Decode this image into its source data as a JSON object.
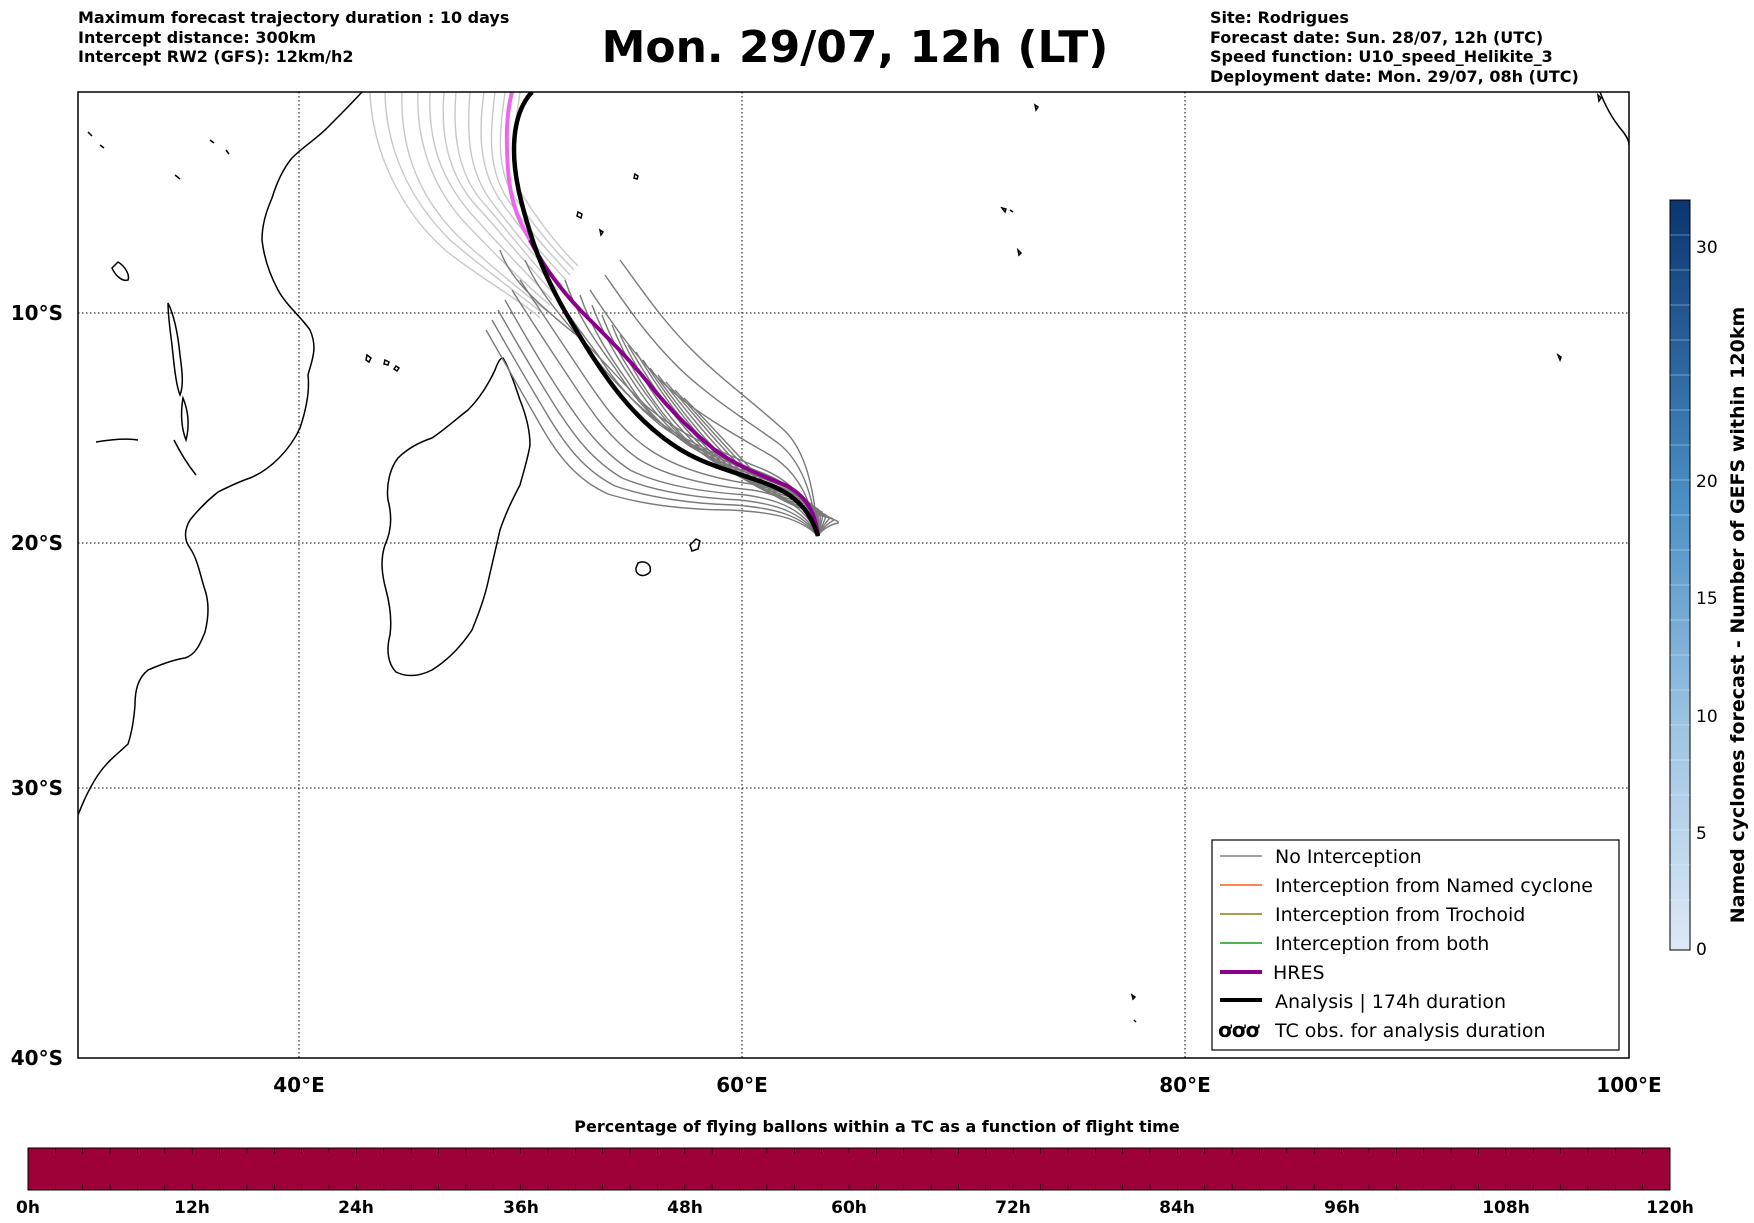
{
  "header": {
    "left": [
      "Maximum forecast trajectory duration : 10 days",
      "Intercept distance: 300km",
      "Intercept RW2 (GFS):  12km/h2"
    ],
    "title": "Mon. 29/07, 12h (LT)",
    "right": [
      "Site: Rodrigues",
      "Forecast date: Sun. 28/07, 12h (UTC)",
      "Speed function: U10_speed_Helikite_3",
      "Deployment date: Mon. 29/07, 08h (UTC)"
    ]
  },
  "map": {
    "lat_labels": [
      "10°S",
      "20°S",
      "30°S",
      "40°S"
    ],
    "lon_labels": [
      "40°E",
      "60°E",
      "80°E",
      "100°E"
    ]
  },
  "legend": [
    {
      "label": "No Interception",
      "color": "#808080"
    },
    {
      "label": "Interception from Named cyclone",
      "color": "#ff5a1a"
    },
    {
      "label": "Interception from Trochoid",
      "color": "#8a7a10"
    },
    {
      "label": "Interception from both",
      "color": "#1a9a1a"
    },
    {
      "label": "HRES",
      "color": "#8b008b"
    },
    {
      "label": "Analysis | 174h duration",
      "color": "#000000"
    },
    {
      "label": "TC obs. for analysis duration",
      "symbol": "ơơơ"
    }
  ],
  "colorbar_right": {
    "label": "Named cyclones forecast - Number of GEFS within 120km",
    "ticks": [
      "0",
      "5",
      "10",
      "15",
      "20",
      "30"
    ]
  },
  "colorbar_bottom": {
    "title": "Percentage of flying ballons within a TC as a function of flight time",
    "ticks": [
      "0h",
      "12h",
      "24h",
      "36h",
      "48h",
      "60h",
      "72h",
      "84h",
      "96h",
      "108h",
      "120h"
    ],
    "fill_color": "#9e003a"
  }
}
